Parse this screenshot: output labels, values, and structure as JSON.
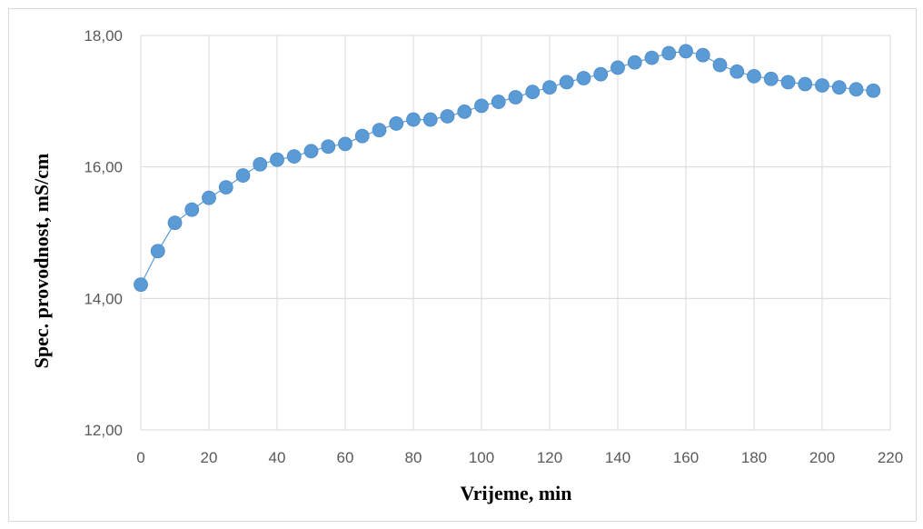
{
  "chart_data": {
    "type": "scatter",
    "title": "",
    "xlabel": "Vrijeme, min",
    "ylabel": "Spec. provodnost, mS/cm",
    "xlim": [
      0,
      220
    ],
    "ylim": [
      12,
      18
    ],
    "x_ticks": [
      "0",
      "20",
      "40",
      "60",
      "80",
      "100",
      "120",
      "140",
      "160",
      "180",
      "200",
      "220"
    ],
    "y_ticks": [
      "12,00",
      "14,00",
      "16,00",
      "18,00"
    ],
    "grid": "horizontal and vertical",
    "legend": "none",
    "marker_color": "#5b9bd5",
    "line_color": "#5b9bd5",
    "series": [
      {
        "x": [
          0,
          5,
          10,
          15,
          20,
          25,
          30,
          35,
          40,
          45,
          50,
          55,
          60,
          65,
          70,
          75,
          80,
          85,
          90,
          95,
          100,
          105,
          110,
          115,
          120,
          125,
          130,
          135,
          140,
          145,
          150,
          155,
          160,
          165,
          170,
          175,
          180,
          185,
          190,
          195,
          200,
          205,
          210,
          215
        ],
        "y": [
          14.21,
          14.72,
          15.15,
          15.35,
          15.53,
          15.69,
          15.87,
          16.04,
          16.11,
          16.16,
          16.24,
          16.31,
          16.35,
          16.47,
          16.56,
          16.66,
          16.72,
          16.72,
          16.77,
          16.84,
          16.93,
          16.99,
          17.06,
          17.14,
          17.21,
          17.29,
          17.35,
          17.41,
          17.51,
          17.59,
          17.66,
          17.73,
          17.76,
          17.7,
          17.55,
          17.45,
          17.38,
          17.34,
          17.29,
          17.26,
          17.24,
          17.21,
          17.18,
          17.16
        ]
      }
    ]
  }
}
